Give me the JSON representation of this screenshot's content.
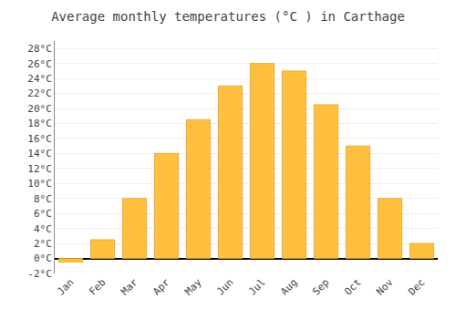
{
  "chart_data": {
    "type": "bar",
    "title": "Average monthly temperatures (°C ) in Carthage",
    "categories": [
      "Jan",
      "Feb",
      "Mar",
      "Apr",
      "May",
      "Jun",
      "Jul",
      "Aug",
      "Sep",
      "Oct",
      "Nov",
      "Dec"
    ],
    "values": [
      -0.5,
      2.5,
      8.0,
      14.0,
      18.5,
      23.0,
      26.0,
      25.0,
      20.5,
      15.0,
      8.0,
      2.0
    ],
    "color": "#FFC040",
    "ylim": [
      -2,
      29
    ],
    "yticks": [
      {
        "value": -2,
        "label": "-2°C"
      },
      {
        "value": 0,
        "label": "0°C"
      },
      {
        "value": 2,
        "label": "2°C"
      },
      {
        "value": 4,
        "label": "4°C"
      },
      {
        "value": 6,
        "label": "6°C"
      },
      {
        "value": 8,
        "label": "8°C"
      },
      {
        "value": 10,
        "label": "10°C"
      },
      {
        "value": 12,
        "label": "12°C"
      },
      {
        "value": 14,
        "label": "14°C"
      },
      {
        "value": 16,
        "label": "16°C"
      },
      {
        "value": 18,
        "label": "18°C"
      },
      {
        "value": 20,
        "label": "20°C"
      },
      {
        "value": 22,
        "label": "22°C"
      },
      {
        "value": 24,
        "label": "24°C"
      },
      {
        "value": 26,
        "label": "26°C"
      },
      {
        "value": 28,
        "label": "28°C"
      }
    ],
    "grid": true
  }
}
